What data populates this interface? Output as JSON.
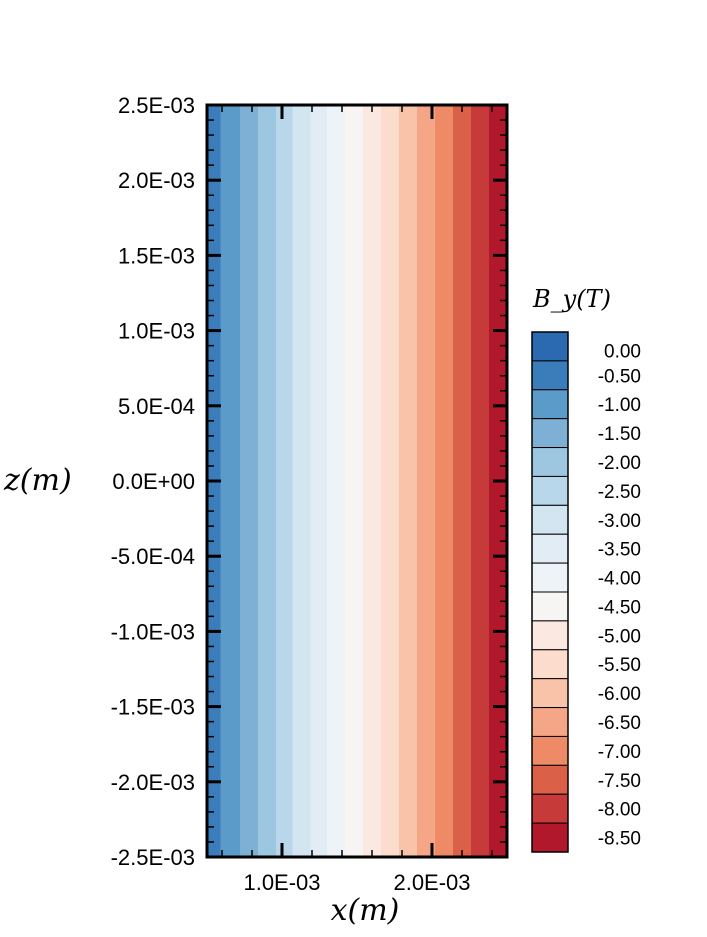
{
  "chart_data": {
    "type": "heatmap",
    "title": "",
    "xlabel": "x(m)",
    "ylabel": "z(m)",
    "colorbar_title": "B_y(T)",
    "xlim": [
      0.0005,
      0.0025
    ],
    "ylim": [
      -0.0025,
      0.0025
    ],
    "x_ticks": [
      {
        "value": 0.001,
        "label": "1.0E-03"
      },
      {
        "value": 0.002,
        "label": "2.0E-03"
      }
    ],
    "y_ticks": [
      {
        "value": 0.0025,
        "label": "2.5E-03"
      },
      {
        "value": 0.002,
        "label": "2.0E-03"
      },
      {
        "value": 0.0015,
        "label": "1.5E-03"
      },
      {
        "value": 0.001,
        "label": "1.0E-03"
      },
      {
        "value": 0.0005,
        "label": "5.0E-04"
      },
      {
        "value": 0.0,
        "label": "0.0E+00"
      },
      {
        "value": -0.0005,
        "label": "-5.0E-04"
      },
      {
        "value": -0.001,
        "label": "-1.0E-03"
      },
      {
        "value": -0.0015,
        "label": "-1.5E-03"
      },
      {
        "value": -0.002,
        "label": "-2.0E-03"
      },
      {
        "value": -0.0025,
        "label": "-2.5E-03"
      }
    ],
    "field_variation": "B_y varies linearly along x, uniform along z",
    "contour_bands": [
      {
        "x_start": 0.0005,
        "x_end": 0.00059,
        "level": "-0.50"
      },
      {
        "x_start": 0.00059,
        "x_end": 0.00072,
        "level": "-1.00"
      },
      {
        "x_start": 0.00072,
        "x_end": 0.00084,
        "level": "-1.50"
      },
      {
        "x_start": 0.00084,
        "x_end": 0.00096,
        "level": "-2.00"
      },
      {
        "x_start": 0.00096,
        "x_end": 0.00107,
        "level": "-2.50"
      },
      {
        "x_start": 0.00107,
        "x_end": 0.00119,
        "level": "-3.00"
      },
      {
        "x_start": 0.00119,
        "x_end": 0.0013,
        "level": "-3.50"
      },
      {
        "x_start": 0.0013,
        "x_end": 0.00142,
        "level": "-4.00"
      },
      {
        "x_start": 0.00142,
        "x_end": 0.00154,
        "level": "-4.50"
      },
      {
        "x_start": 0.00154,
        "x_end": 0.00166,
        "level": "-5.00"
      },
      {
        "x_start": 0.00166,
        "x_end": 0.00178,
        "level": "-5.50"
      },
      {
        "x_start": 0.00178,
        "x_end": 0.0019,
        "level": "-6.00"
      },
      {
        "x_start": 0.0019,
        "x_end": 0.00202,
        "level": "-6.50"
      },
      {
        "x_start": 0.00202,
        "x_end": 0.00214,
        "level": "-7.00"
      },
      {
        "x_start": 0.00214,
        "x_end": 0.00226,
        "level": "-7.50"
      },
      {
        "x_start": 0.00226,
        "x_end": 0.00238,
        "level": "-8.00"
      },
      {
        "x_start": 0.00238,
        "x_end": 0.0025,
        "level": "-8.50"
      }
    ],
    "colorbar": {
      "levels": [
        "0.00",
        "-0.50",
        "-1.00",
        "-1.50",
        "-2.00",
        "-2.50",
        "-3.00",
        "-3.50",
        "-4.00",
        "-4.50",
        "-5.00",
        "-5.50",
        "-6.00",
        "-6.50",
        "-7.00",
        "-7.50",
        "-8.00",
        "-8.50"
      ],
      "colors": [
        "#2b6ab0",
        "#3b7dbb",
        "#5b9bc9",
        "#7db0d4",
        "#9dc6e0",
        "#b9d7ea",
        "#d2e5f1",
        "#e2ecf4",
        "#eef3f7",
        "#f7f5f4",
        "#fbe9e1",
        "#fcdccd",
        "#f9c3aa",
        "#f4a686",
        "#ee8a65",
        "#db6048",
        "#c73a3a",
        "#b2182b"
      ]
    }
  }
}
